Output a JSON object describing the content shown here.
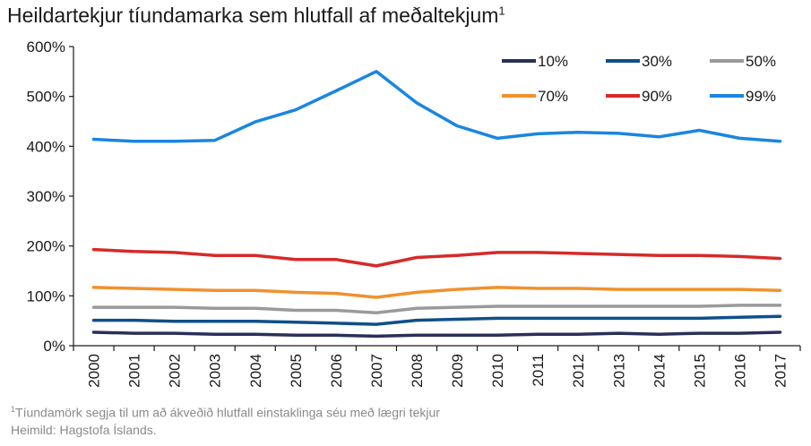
{
  "title": "Heildartekjur tíundamarka sem hlutfall af meðaltekjum",
  "title_sup": "1",
  "footnote_sup": "1",
  "footnote": "Tíundamörk segja til um að ákveðið hlutfall einstaklinga séu með lægri tekjur",
  "source": "Heimild: Hagstofa Íslands.",
  "chart_data": {
    "type": "line",
    "x": [
      "2000",
      "2001",
      "2002",
      "2003",
      "2004",
      "2005",
      "2006",
      "2007",
      "2008",
      "2009",
      "2010",
      "2011",
      "2012",
      "2013",
      "2014",
      "2015",
      "2016",
      "2017"
    ],
    "ylim": [
      0,
      600
    ],
    "yticks": [
      0,
      100,
      200,
      300,
      400,
      500,
      600
    ],
    "ytick_labels": [
      "0%",
      "100%",
      "200%",
      "300%",
      "400%",
      "500%",
      "600%"
    ],
    "grid": false,
    "legend_position": "top-right",
    "series": [
      {
        "name": "10%",
        "color": "#2a2f5a",
        "values": [
          27,
          25,
          25,
          23,
          23,
          21,
          21,
          19,
          21,
          21,
          21,
          23,
          23,
          25,
          23,
          25,
          25,
          27
        ]
      },
      {
        "name": "30%",
        "color": "#0f4f8a",
        "values": [
          51,
          51,
          49,
          49,
          49,
          47,
          45,
          43,
          51,
          53,
          55,
          55,
          55,
          55,
          55,
          55,
          57,
          59
        ]
      },
      {
        "name": "50%",
        "color": "#9a9a9a",
        "values": [
          77,
          77,
          77,
          75,
          75,
          71,
          71,
          66,
          75,
          77,
          79,
          79,
          79,
          79,
          79,
          79,
          81,
          81
        ]
      },
      {
        "name": "70%",
        "color": "#f0912e",
        "values": [
          117,
          115,
          113,
          111,
          111,
          107,
          105,
          97,
          107,
          113,
          117,
          115,
          115,
          113,
          113,
          113,
          113,
          111
        ]
      },
      {
        "name": "90%",
        "color": "#d62a2a",
        "values": [
          193,
          189,
          187,
          181,
          181,
          173,
          173,
          160,
          177,
          181,
          187,
          187,
          185,
          183,
          181,
          181,
          179,
          175
        ]
      },
      {
        "name": "99%",
        "color": "#1a86e0",
        "values": [
          414,
          410,
          410,
          412,
          449,
          473,
          511,
          550,
          487,
          441,
          416,
          425,
          428,
          426,
          419,
          432,
          416,
          410
        ]
      }
    ]
  }
}
